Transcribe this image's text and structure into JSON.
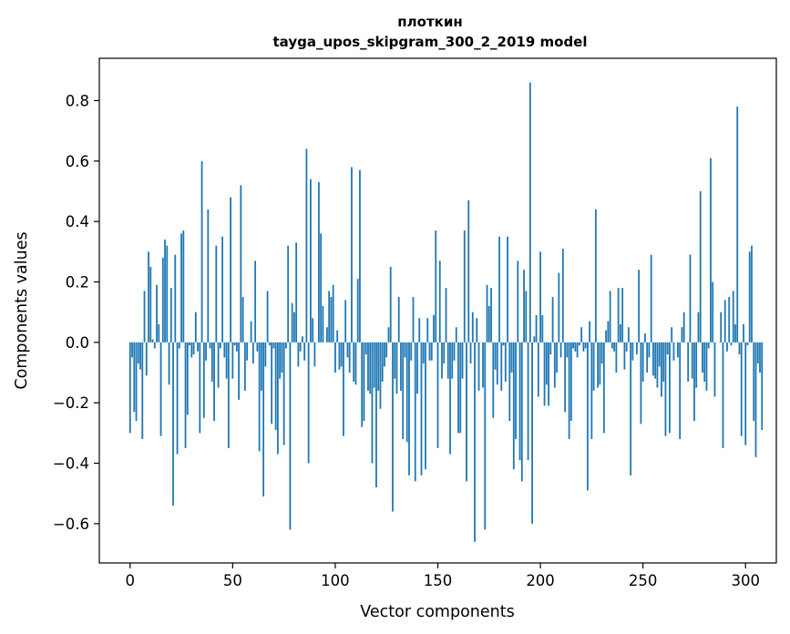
{
  "chart_data": {
    "type": "bar",
    "title_line1": "плоткин",
    "title_line2": "tayga_upos_skipgram_300_2_2019 model",
    "xlabel": "Vector components",
    "ylabel": "Components values",
    "xlim": [
      -15,
      315
    ],
    "ylim": [
      -0.73,
      0.94
    ],
    "xticks": [
      0,
      50,
      100,
      150,
      200,
      250,
      300
    ],
    "xtick_labels": [
      "0",
      "50",
      "100",
      "150",
      "200",
      "250",
      "300"
    ],
    "yticks": [
      -0.6,
      -0.4,
      -0.2,
      0.0,
      0.2,
      0.4,
      0.6,
      0.8
    ],
    "ytick_labels": [
      "−0.6",
      "−0.4",
      "−0.2",
      "0.0",
      "0.2",
      "0.4",
      "0.6",
      "0.8"
    ],
    "bar_color": "#1f77b4",
    "grid": false,
    "legend": "none",
    "x_start": 0,
    "values": [
      -0.3,
      -0.05,
      -0.23,
      -0.26,
      -0.07,
      -0.09,
      -0.32,
      0.17,
      -0.11,
      0.3,
      0.25,
      0.01,
      -0.02,
      0.19,
      0.06,
      -0.31,
      0.28,
      0.34,
      0.32,
      -0.14,
      0.18,
      -0.54,
      0.29,
      -0.37,
      -0.02,
      0.36,
      0.37,
      -0.35,
      -0.24,
      -0.01,
      -0.05,
      -0.04,
      0.1,
      -0.03,
      -0.3,
      0.6,
      -0.25,
      -0.06,
      0.44,
      -0.02,
      -0.13,
      -0.26,
      0.32,
      -0.15,
      -0.02,
      0.35,
      -0.05,
      -0.12,
      -0.35,
      0.48,
      -0.12,
      -0.01,
      -0.03,
      -0.19,
      0.52,
      0.15,
      -0.16,
      -0.06,
      0.0,
      0.07,
      -0.07,
      0.27,
      -0.03,
      -0.36,
      -0.16,
      -0.51,
      -0.08,
      0.17,
      -0.01,
      -0.27,
      -0.02,
      -0.29,
      -0.37,
      -0.12,
      -0.1,
      -0.34,
      -0.02,
      0.32,
      -0.62,
      0.13,
      0.1,
      0.33,
      -0.08,
      -0.03,
      0.02,
      -0.06,
      0.64,
      -0.4,
      0.54,
      0.08,
      -0.08,
      0.0,
      0.53,
      0.36,
      0.12,
      0.0,
      0.05,
      0.17,
      0.15,
      0.19,
      -0.1,
      0.04,
      -0.09,
      -0.08,
      -0.31,
      0.14,
      -0.05,
      -0.1,
      0.58,
      -0.13,
      -0.14,
      0.21,
      0.57,
      -0.28,
      -0.26,
      -0.04,
      -0.16,
      -0.17,
      -0.4,
      -0.15,
      -0.48,
      -0.16,
      -0.22,
      -0.13,
      -0.08,
      -0.05,
      0.05,
      0.25,
      -0.56,
      -0.12,
      -0.17,
      0.15,
      -0.16,
      -0.32,
      -0.05,
      -0.33,
      -0.44,
      -0.06,
      0.15,
      -0.46,
      -0.17,
      0.08,
      -0.44,
      -0.07,
      -0.42,
      0.08,
      -0.06,
      -0.06,
      0.09,
      0.37,
      -0.35,
      0.27,
      -0.12,
      -0.07,
      0.18,
      -0.12,
      -0.37,
      -0.12,
      -0.06,
      0.05,
      -0.3,
      -0.3,
      -0.12,
      0.37,
      -0.46,
      0.47,
      -0.07,
      0.1,
      -0.66,
      0.08,
      -0.16,
      0.0,
      -0.15,
      -0.62,
      0.19,
      0.12,
      0.18,
      -0.25,
      -0.09,
      -0.14,
      0.35,
      -0.16,
      -0.01,
      -0.13,
      0.35,
      -0.26,
      -0.1,
      -0.42,
      -0.32,
      0.27,
      -0.39,
      -0.46,
      0.24,
      0.17,
      -0.39,
      0.86,
      -0.6,
      0.02,
      0.09,
      -0.18,
      0.3,
      0.09,
      -0.21,
      -0.14,
      -0.21,
      -0.04,
      0.15,
      -0.15,
      -0.1,
      0.23,
      -0.05,
      0.31,
      -0.23,
      -0.05,
      -0.32,
      -0.26,
      -0.02,
      -0.03,
      -0.05,
      -0.01,
      0.05,
      -0.03,
      -0.02,
      -0.49,
      0.07,
      -0.32,
      -0.16,
      0.44,
      -0.15,
      -0.14,
      -0.07,
      -0.3,
      0.04,
      0.07,
      0.17,
      -0.02,
      -0.03,
      -0.1,
      0.18,
      0.06,
      0.18,
      -0.09,
      -0.03,
      0.05,
      -0.44,
      -0.06,
      0.0,
      -0.04,
      0.24,
      -0.27,
      -0.13,
      0.03,
      -0.1,
      -0.05,
      0.29,
      -0.11,
      -0.12,
      -0.15,
      -0.08,
      -0.18,
      -0.13,
      -0.31,
      -0.04,
      -0.3,
      0.05,
      -0.06,
      0.0,
      -0.05,
      -0.32,
      0.05,
      0.1,
      0.0,
      -0.13,
      0.29,
      -0.12,
      -0.26,
      -0.15,
      0.1,
      0.5,
      -0.1,
      -0.13,
      -0.16,
      -0.02,
      0.61,
      0.2,
      -0.18,
      0.0,
      0.0,
      0.1,
      -0.35,
      0.14,
      -0.03,
      0.15,
      -0.01,
      0.17,
      0.06,
      0.78,
      -0.04,
      -0.31,
      0.06,
      -0.34,
      -0.01,
      0.3,
      0.32,
      -0.26,
      -0.38,
      -0.07,
      -0.1,
      -0.29
    ]
  }
}
